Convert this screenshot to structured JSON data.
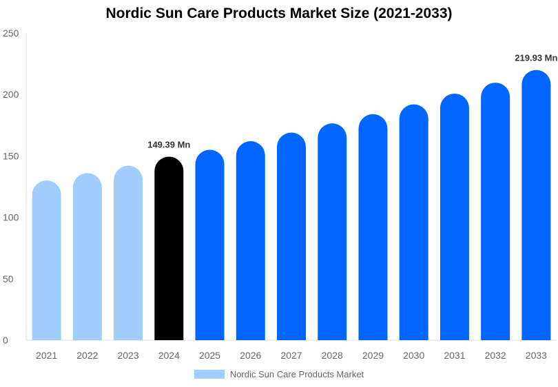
{
  "chart_data": {
    "type": "bar",
    "title": "Nordic Sun Care Products Market Size (2021-2033)",
    "categories": [
      "2021",
      "2022",
      "2023",
      "2024",
      "2025",
      "2026",
      "2027",
      "2028",
      "2029",
      "2030",
      "2031",
      "2032",
      "2033"
    ],
    "series": [
      {
        "name": "Nordic Sun Care Products Market",
        "values": [
          130,
          136,
          142,
          149.39,
          155,
          162,
          169,
          176.5,
          184,
          192,
          200.7,
          209.6,
          219.93
        ]
      }
    ],
    "data_labels": {
      "3": "149.39 Mn",
      "12": "219.93 Mn"
    },
    "ylim": [
      0,
      250
    ],
    "yticks": [
      0,
      50,
      100,
      150,
      200,
      250
    ],
    "xlabel": "",
    "ylabel": "",
    "grid": false,
    "legend": "bottom",
    "colors": {
      "historical": "#a0cdfc",
      "current": "#000000",
      "forecast": "#0066ff"
    },
    "color_groups": [
      "historical",
      "historical",
      "historical",
      "current",
      "forecast",
      "forecast",
      "forecast",
      "forecast",
      "forecast",
      "forecast",
      "forecast",
      "forecast",
      "forecast"
    ]
  }
}
